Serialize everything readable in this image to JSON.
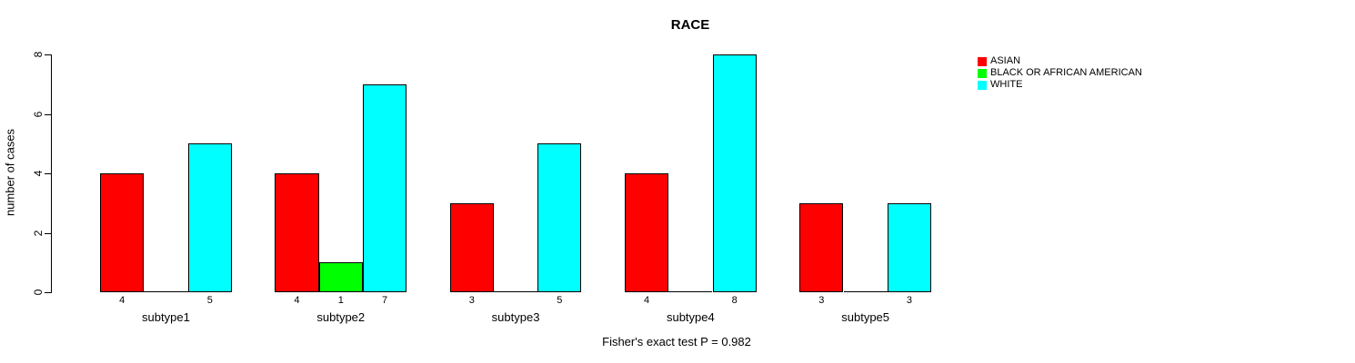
{
  "title": "RACE",
  "y_axis_label": "number of cases",
  "annotation": "Fisher's exact test P = 0.982",
  "legend": {
    "items": [
      {
        "label": "ASIAN",
        "color": "#ff0000"
      },
      {
        "label": "BLACK OR AFRICAN AMERICAN",
        "color": "#00ff00"
      },
      {
        "label": "WHITE",
        "color": "#00ffff"
      }
    ]
  },
  "chart_data": {
    "type": "bar",
    "title": "RACE",
    "xlabel": "",
    "ylabel": "number of cases",
    "ylim": [
      0,
      8
    ],
    "yticks": [
      0,
      2,
      4,
      6,
      8
    ],
    "categories": [
      "subtype1",
      "subtype2",
      "subtype3",
      "subtype4",
      "subtype5"
    ],
    "series": [
      {
        "name": "ASIAN",
        "color": "#ff0000",
        "values": [
          4,
          4,
          3,
          4,
          3
        ]
      },
      {
        "name": "BLACK OR AFRICAN AMERICAN",
        "color": "#00ff00",
        "values": [
          0,
          1,
          0,
          0,
          0
        ]
      },
      {
        "name": "WHITE",
        "color": "#00ffff",
        "values": [
          5,
          7,
          5,
          8,
          3
        ]
      }
    ],
    "bar_value_labels": true,
    "zero_bars_drawn_as_baseline_segment": true,
    "bar_border_color": "#000000",
    "grid": false,
    "legend_position": "top-right",
    "annotation": "Fisher's exact test P = 0.982"
  }
}
